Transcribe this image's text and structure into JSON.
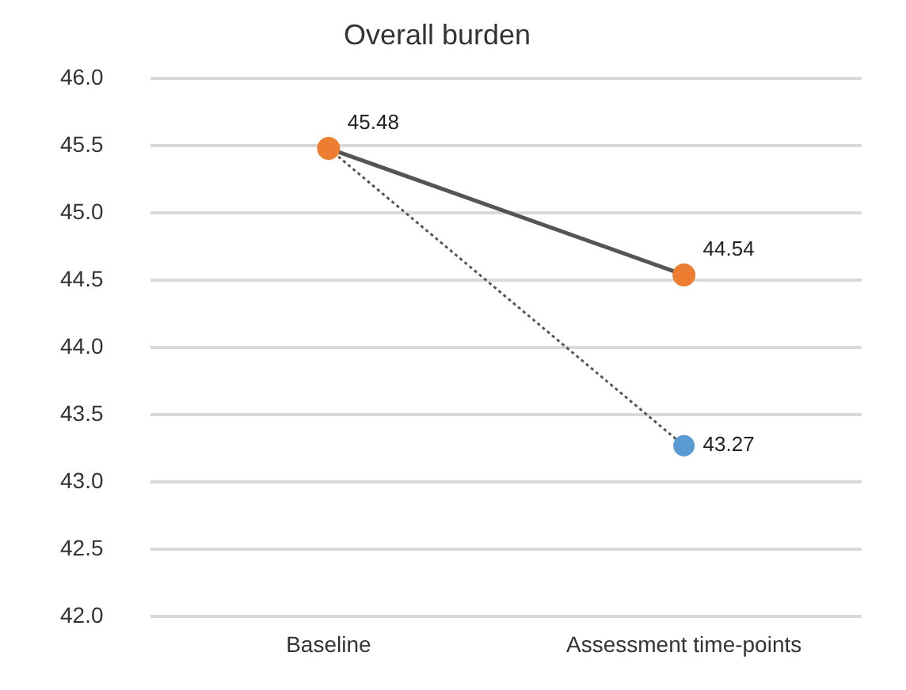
{
  "chart_data": {
    "type": "line",
    "title": "Overall burden",
    "categories": [
      "Baseline",
      "Assessment time-points"
    ],
    "series": [
      {
        "color": "#555555",
        "line_style": "solid",
        "colors": [
          "#ed7d31",
          "#ed7d31"
        ],
        "values": [
          45.48,
          44.54
        ],
        "value_labels": [
          "45.48",
          "44.54"
        ]
      },
      {
        "color": "#555555",
        "line_style": "dotted",
        "colors": [
          "#ed7d31",
          "#5b9bd5"
        ],
        "values": [
          45.48,
          43.27
        ],
        "value_labels": [
          null,
          "43.27"
        ]
      }
    ],
    "ylim": [
      42,
      46
    ],
    "yticks": [
      {
        "value": 42,
        "label": "42.0"
      },
      {
        "value": 42.5,
        "label": "42.5"
      },
      {
        "value": 43,
        "label": "43.0"
      },
      {
        "value": 43.5,
        "label": "43.5"
      },
      {
        "value": 44,
        "label": "44.0"
      },
      {
        "value": 44.5,
        "label": "44.5"
      },
      {
        "value": 45,
        "label": "45.0"
      },
      {
        "value": 45.5,
        "label": "45.5"
      },
      {
        "value": 46,
        "label": "46.0"
      }
    ],
    "grid": "y",
    "marker": "circle",
    "legend": false
  }
}
